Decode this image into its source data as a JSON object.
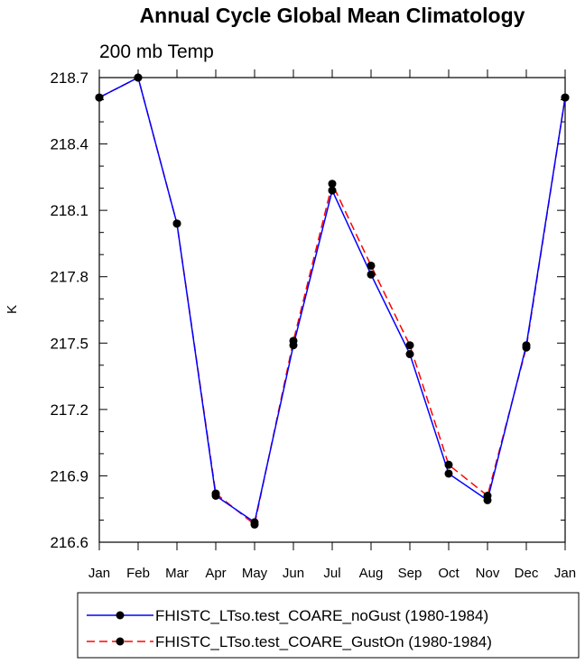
{
  "chart_data": {
    "type": "line",
    "title": "Annual Cycle Global Mean Climatology",
    "subtitle": "200 mb Temp",
    "ylabel": "K",
    "xlabel": "",
    "categories": [
      "Jan",
      "Feb",
      "Mar",
      "Apr",
      "May",
      "Jun",
      "Jul",
      "Aug",
      "Sep",
      "Oct",
      "Nov",
      "Dec",
      "Jan"
    ],
    "ylim": [
      216.6,
      218.7
    ],
    "yticks": [
      "216.6",
      "216.9",
      "217.2",
      "217.5",
      "217.8",
      "218.1",
      "218.4",
      "218.7"
    ],
    "legend_placement": "bottom",
    "grid": false,
    "series": [
      {
        "name": "FHISTC_LTso.test_COARE_noGust (1980-1984)",
        "color": "#0000ff",
        "dash": "solid",
        "values": [
          218.61,
          218.7,
          218.04,
          216.81,
          216.69,
          217.49,
          218.19,
          217.81,
          217.45,
          216.91,
          216.79,
          217.49,
          218.61
        ]
      },
      {
        "name": "FHISTC_LTso.test_COARE_GustOn (1980-1984)",
        "color": "#ff0000",
        "dash": "dashed",
        "values": [
          218.61,
          218.7,
          218.04,
          216.82,
          216.68,
          217.51,
          218.22,
          217.85,
          217.49,
          216.95,
          216.81,
          217.48,
          218.61
        ]
      }
    ]
  }
}
